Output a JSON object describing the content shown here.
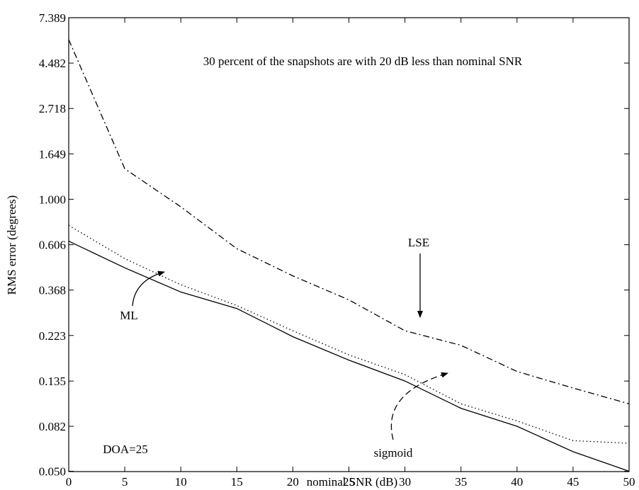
{
  "chart_data": {
    "type": "line",
    "title": "",
    "xlabel": "nominal SNR   (dB)",
    "ylabel": "RMS error   (degrees)",
    "xlim": [
      0,
      50
    ],
    "ylim_ln": [
      -3.0,
      2.0
    ],
    "yscale": "log",
    "xticks": [
      0,
      5,
      10,
      15,
      20,
      25,
      30,
      35,
      40,
      45,
      50
    ],
    "yticks": [
      {
        "value": 0.05,
        "label": "0.050"
      },
      {
        "value": 0.082,
        "label": "0.082"
      },
      {
        "value": 0.135,
        "label": "0.135"
      },
      {
        "value": 0.223,
        "label": "0.223"
      },
      {
        "value": 0.368,
        "label": "0.368"
      },
      {
        "value": 0.606,
        "label": "0.606"
      },
      {
        "value": 1.0,
        "label": "1.000"
      },
      {
        "value": 1.649,
        "label": "1.649"
      },
      {
        "value": 2.718,
        "label": "2.718"
      },
      {
        "value": 4.482,
        "label": "4.482"
      },
      {
        "value": 7.389,
        "label": "7.389"
      }
    ],
    "grid": false,
    "x": [
      0,
      5,
      10,
      15,
      20,
      25,
      30,
      35,
      40,
      45,
      50
    ],
    "series": [
      {
        "name": "ML",
        "style": "solid",
        "values": [
          0.63,
          0.47,
          0.36,
          0.3,
          0.22,
          0.17,
          0.135,
          0.1,
          0.082,
          0.062,
          0.05
        ]
      },
      {
        "name": "sigmoid",
        "style": "dotted",
        "values": [
          0.75,
          0.52,
          0.39,
          0.31,
          0.235,
          0.18,
          0.145,
          0.105,
          0.087,
          0.07,
          0.068
        ]
      },
      {
        "name": "LSE",
        "style": "dashdot",
        "values": [
          5.8,
          1.4,
          0.92,
          0.58,
          0.43,
          0.33,
          0.235,
          0.2,
          0.15,
          0.125,
          0.105
        ]
      }
    ],
    "annotations": {
      "header": "30 percent of the snapshots are with 20 dB less than nominal SNR",
      "doa": "DOA=25",
      "ml": "ML",
      "lse": "LSE",
      "sigmoid": "sigmoid"
    }
  }
}
